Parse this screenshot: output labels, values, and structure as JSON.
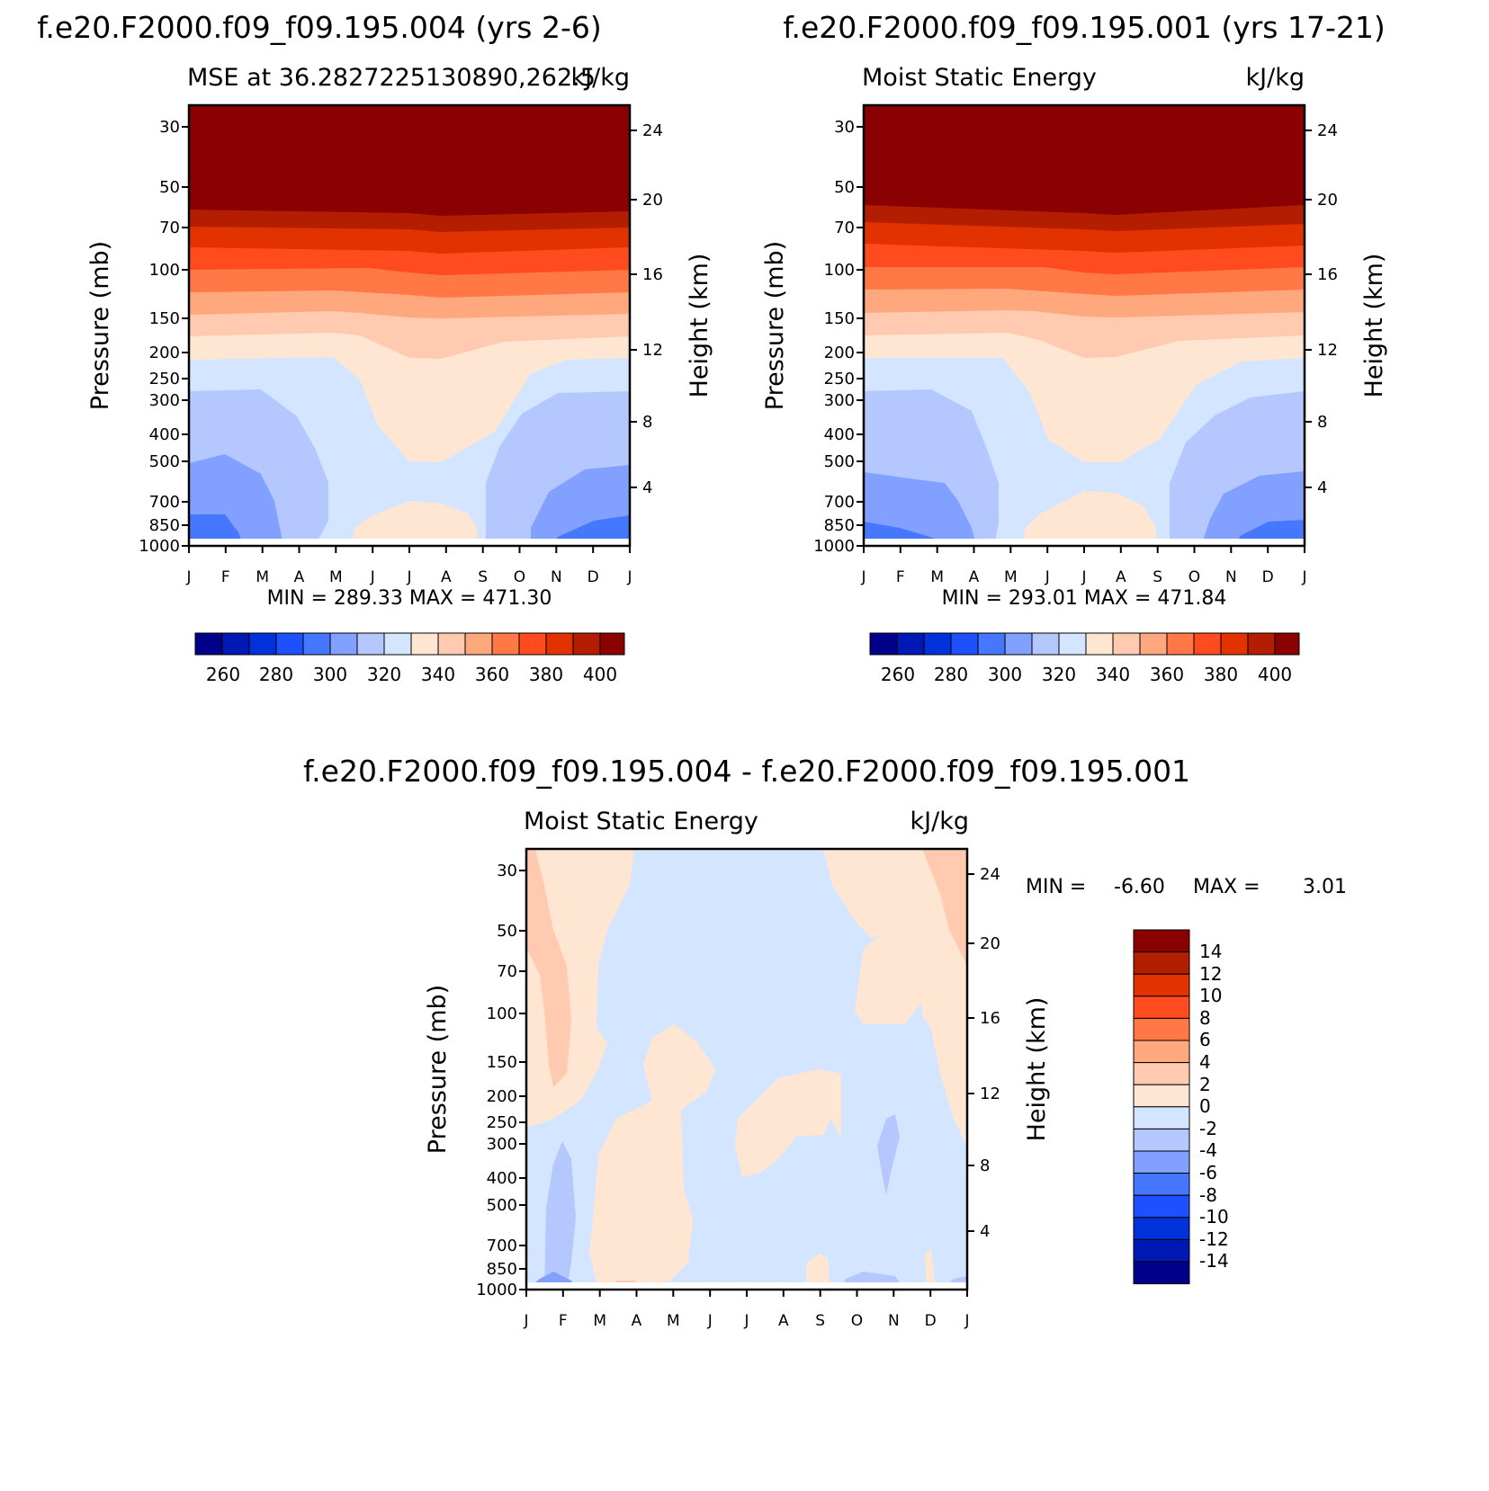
{
  "chart_data": [
    {
      "type": "heatmap",
      "title": "f.e20.F2000.f09_f09.195.004 (yrs 2-6)",
      "subtitle_left": "MSE at 36.2827225130890,262.5",
      "subtitle_right": "kJ/kg",
      "ylabel": "Pressure (mb)",
      "y2label": "Height (km)",
      "xticks": [
        "J",
        "F",
        "M",
        "A",
        "M",
        "J",
        "J",
        "A",
        "S",
        "O",
        "N",
        "D",
        "J"
      ],
      "yticks": [
        "30",
        "50",
        "70",
        "100",
        "150",
        "200",
        "250",
        "300",
        "400",
        "500",
        "700",
        "850",
        "1000"
      ],
      "y2ticks": [
        "24",
        "20",
        "16",
        "12",
        "8",
        "4"
      ],
      "stats": "MIN = 289.33 MAX = 471.30",
      "min": 289.33,
      "max": 471.3,
      "colorbar_labels": [
        "260",
        "280",
        "300",
        "320",
        "340",
        "360",
        "380",
        "400"
      ],
      "description": "Month vs pressure contour of moist static energy"
    },
    {
      "type": "heatmap",
      "title": "f.e20.F2000.f09_f09.195.001 (yrs 17-21)",
      "subtitle_left": "Moist Static Energy",
      "subtitle_right": "kJ/kg",
      "ylabel": "Pressure (mb)",
      "y2label": "Height (km)",
      "xticks": [
        "J",
        "F",
        "M",
        "A",
        "M",
        "J",
        "J",
        "A",
        "S",
        "O",
        "N",
        "D",
        "J"
      ],
      "yticks": [
        "30",
        "50",
        "70",
        "100",
        "150",
        "200",
        "250",
        "300",
        "400",
        "500",
        "700",
        "850",
        "1000"
      ],
      "y2ticks": [
        "24",
        "20",
        "16",
        "12",
        "8",
        "4"
      ],
      "stats": "MIN = 293.01 MAX = 471.84",
      "min": 293.01,
      "max": 471.84,
      "colorbar_labels": [
        "260",
        "280",
        "300",
        "320",
        "340",
        "360",
        "380",
        "400"
      ]
    },
    {
      "type": "heatmap",
      "title": "f.e20.F2000.f09_f09.195.004 - f.e20.F2000.f09_f09.195.001",
      "subtitle_left": "Moist Static Energy",
      "subtitle_right": "kJ/kg",
      "ylabel": "Pressure (mb)",
      "y2label": "Height (km)",
      "xticks": [
        "J",
        "F",
        "M",
        "A",
        "M",
        "J",
        "J",
        "A",
        "S",
        "O",
        "N",
        "D",
        "J"
      ],
      "yticks": [
        "30",
        "50",
        "70",
        "100",
        "150",
        "200",
        "250",
        "300",
        "400",
        "500",
        "700",
        "850",
        "1000"
      ],
      "y2ticks": [
        "24",
        "20",
        "16",
        "12",
        "8",
        "4"
      ],
      "stats_min": "MIN =",
      "stats_min_val": "-6.60",
      "stats_max": "MAX =",
      "stats_max_val": "3.01",
      "min": -6.6,
      "max": 3.01,
      "colorbar_labels": [
        "14",
        "12",
        "10",
        "8",
        "6",
        "4",
        "2",
        "0",
        "-2",
        "-4",
        "-6",
        "-8",
        "-10",
        "-12",
        "-14"
      ]
    }
  ],
  "colors": {
    "seq": [
      "#00008b",
      "#0019b4",
      "#0032dc",
      "#1e50ff",
      "#4678ff",
      "#82a0ff",
      "#b4c8ff",
      "#d4e6ff",
      "#ffe6d2",
      "#ffcaaf",
      "#ffa77d",
      "#ff7846",
      "#ff4b1e",
      "#e13200",
      "#b41e00",
      "#8b0000"
    ],
    "pos_zero": "#ffe6d2",
    "neg_zero": "#d4e6ff"
  }
}
